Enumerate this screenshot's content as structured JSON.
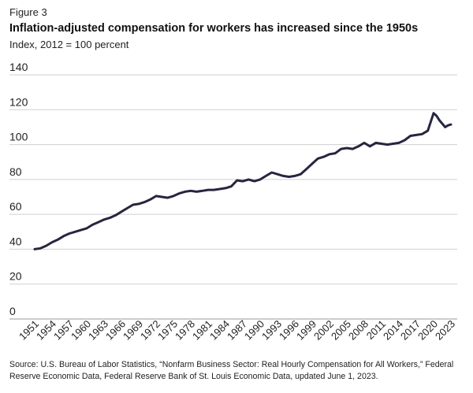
{
  "figure_label": "Figure 3",
  "source": "Source: U.S. Bureau of Labor Statistics, “Nonfarm Business Sector: Real Hourly Compensation for All Workers,” Federal Reserve Economic Data, Federal Reserve Bank of St. Louis Economic Data, updated June 1, 2023.",
  "colors": {
    "line": "#26263f",
    "grid": "#cfcfcf",
    "text": "#222222"
  },
  "chart_data": {
    "type": "line",
    "title": "Inflation-adjusted compensation for workers has increased since the 1950s",
    "subtitle": "Index, 2012 = 100 percent",
    "xlabel": "",
    "ylabel": "",
    "ylim": [
      0,
      140
    ],
    "yticks": [
      0,
      20,
      40,
      60,
      80,
      100,
      120,
      140
    ],
    "xlim": [
      1951,
      2023
    ],
    "xticks": [
      "1951",
      "1954",
      "1957",
      "1960",
      "1963",
      "1966",
      "1969",
      "1972",
      "1975",
      "1978",
      "1981",
      "1984",
      "1987",
      "1990",
      "1993",
      "1996",
      "1999",
      "2002",
      "2005",
      "2008",
      "2011",
      "2014",
      "2017",
      "2020",
      "2023"
    ],
    "grid": true,
    "legend": "none",
    "series": [
      {
        "x": [
          1951,
          1952,
          1953,
          1954,
          1955,
          1956,
          1957,
          1958,
          1959,
          1960,
          1961,
          1962,
          1963,
          1964,
          1965,
          1966,
          1967,
          1968,
          1969,
          1970,
          1971,
          1972,
          1973,
          1974,
          1975,
          1976,
          1977,
          1978,
          1979,
          1980,
          1981,
          1982,
          1983,
          1984,
          1985,
          1986,
          1987,
          1988,
          1989,
          1990,
          1991,
          1992,
          1993,
          1994,
          1995,
          1996,
          1997,
          1998,
          1999,
          2000,
          2001,
          2002,
          2003,
          2004,
          2005,
          2006,
          2007,
          2008,
          2009,
          2010,
          2011,
          2012,
          2013,
          2014,
          2015,
          2016,
          2017,
          2018,
          2019,
          2020,
          2020.5,
          2021,
          2022,
          2022.5,
          2023
        ],
        "values": [
          40,
          40.5,
          42,
          44,
          45.5,
          47.5,
          49,
          50,
          51,
          52,
          54,
          55.5,
          57,
          58,
          59.5,
          61.5,
          63.5,
          65.5,
          66,
          67,
          68.5,
          70.5,
          70,
          69.5,
          70.5,
          72,
          73,
          73.5,
          73,
          73.5,
          74,
          74,
          74.5,
          75,
          76,
          79.5,
          79,
          80,
          79,
          80,
          82,
          84,
          83,
          82,
          81.5,
          82,
          83,
          86,
          89,
          92,
          93,
          94.5,
          95,
          97.5,
          98,
          97.5,
          99,
          101,
          99,
          101,
          100.5,
          100,
          100.5,
          101,
          102.5,
          105,
          105.5,
          106,
          108,
          118,
          116.5,
          114,
          110,
          111,
          111.5
        ]
      }
    ]
  }
}
